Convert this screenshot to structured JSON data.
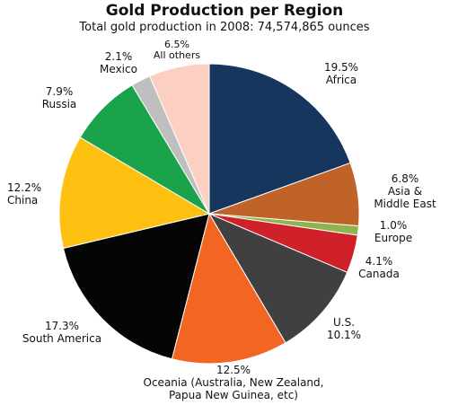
{
  "chart_data": {
    "type": "pie",
    "title": "Gold Production per Region",
    "subtitle": "Total gold production in 2008: 74,574,865 ounces",
    "slices": [
      {
        "name": "Africa",
        "value": 19.5,
        "pct_label": "19.5%",
        "label_lines": [
          "Africa"
        ],
        "color": "#17365d"
      },
      {
        "name": "Asia & Middle East",
        "value": 6.8,
        "pct_label": "6.8%",
        "label_lines": [
          "Asia &",
          "Middle East"
        ],
        "color": "#bf6328"
      },
      {
        "name": "Europe",
        "value": 1.0,
        "pct_label": "1.0%",
        "label_lines": [
          "Europe"
        ],
        "color": "#8fb44e"
      },
      {
        "name": "Canada",
        "value": 4.1,
        "pct_label": "4.1%",
        "label_lines": [
          "Canada"
        ],
        "color": "#d0212a"
      },
      {
        "name": "U.S.",
        "value": 10.1,
        "pct_label": "10.1%",
        "label_lines": [
          "U.S."
        ],
        "color": "#404040"
      },
      {
        "name": "Oceania (Australia, New Zealand, Papua New Guinea, etc)",
        "value": 12.5,
        "pct_label": "12.5%",
        "label_lines": [
          "Oceania (Australia, New Zealand,",
          "Papua New Guinea, etc)"
        ],
        "color": "#f26522"
      },
      {
        "name": "South America",
        "value": 17.3,
        "pct_label": "17.3%",
        "label_lines": [
          "South America"
        ],
        "color": "#050505"
      },
      {
        "name": "China",
        "value": 12.2,
        "pct_label": "12.2%",
        "label_lines": [
          "China"
        ],
        "color": "#fec111"
      },
      {
        "name": "Russia",
        "value": 7.9,
        "pct_label": "7.9%",
        "label_lines": [
          "Russia"
        ],
        "color": "#1aa34a"
      },
      {
        "name": "Mexico",
        "value": 2.1,
        "pct_label": "2.1%",
        "label_lines": [
          "Mexico"
        ],
        "color": "#bfbfbf"
      },
      {
        "name": "All others",
        "value": 6.5,
        "pct_label": "6.5%",
        "label_lines": [
          "All others"
        ],
        "color": "#fbd0c2"
      }
    ]
  }
}
